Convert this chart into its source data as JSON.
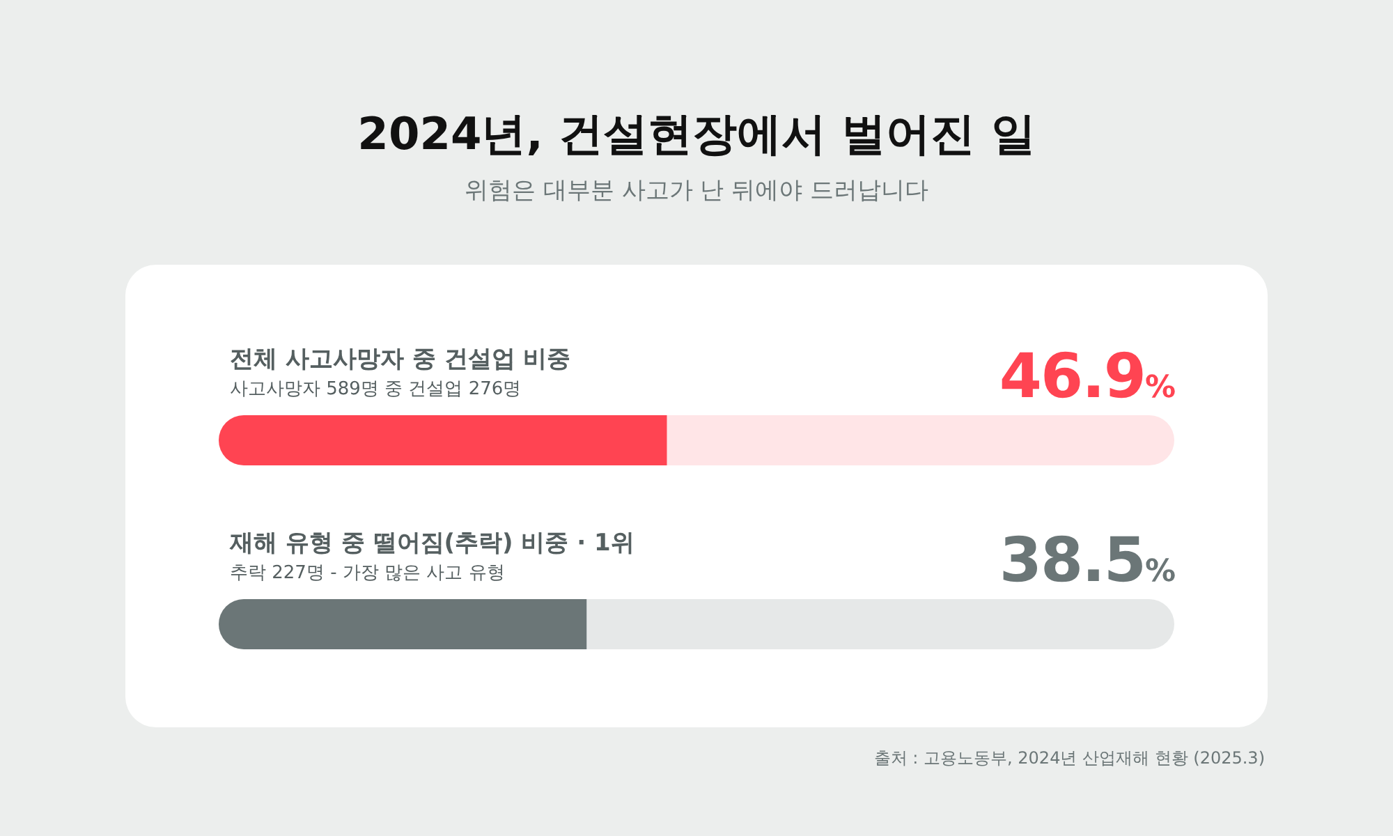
{
  "chart_data": {
    "type": "bar",
    "orientation": "horizontal",
    "title": "2024년, 건설현장에서 벌어진 일",
    "subtitle": "위험은 대부분 사고가 난 뒤에야 드러납니다",
    "categories": [
      "전체 사고사망자 중 건설업 비중",
      "재해 유형 중 떨어짐(추락) 비중 · 1위"
    ],
    "values": [
      46.9,
      38.5
    ],
    "colors": [
      "#ff4452",
      "#6b7677"
    ],
    "value_labels": [
      "46.9%",
      "38.5%"
    ],
    "xlim": [
      0,
      100
    ],
    "annotations": [
      "사고사망자 589명 중 건설업 276명",
      "추락 227명 - 가장 많은 사고 유형",
      "출처 : 고용노동부, 2024년 산업재해 현황 (2025.3)"
    ]
  }
}
